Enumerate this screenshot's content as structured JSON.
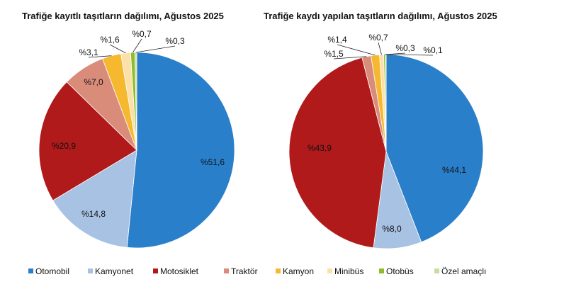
{
  "chart_data": [
    {
      "type": "pie",
      "title": "Trafiğe kayıtlı taşıtların dağılımı, Ağustos 2025",
      "categories": [
        "Otomobil",
        "Kamyonet",
        "Motosiklet",
        "Traktör",
        "Kamyon",
        "Minibüs",
        "Otobüs",
        "Özel amaçlı"
      ],
      "values": [
        51.6,
        14.8,
        20.9,
        7.0,
        3.1,
        1.6,
        0.7,
        0.3
      ],
      "labels": [
        "%51,6",
        "%14,8",
        "%20,9",
        "%7,0",
        "%3,1",
        "%1,6",
        "%0,7",
        "%0,3"
      ],
      "legend": "bottom"
    },
    {
      "type": "pie",
      "title": "Trafiğe kaydı yapılan taşıtların dağılımı, Ağustos 2025",
      "categories": [
        "Otomobil",
        "Kamyonet",
        "Motosiklet",
        "Traktör",
        "Kamyon",
        "Minibüs",
        "Otobüs",
        "Özel amaçlı"
      ],
      "values": [
        44.1,
        8.0,
        43.9,
        1.5,
        1.4,
        0.7,
        0.3,
        0.1
      ],
      "labels": [
        "%44,1",
        "%8,0",
        "%43,9",
        "%1,5",
        "%1,4",
        "%0,7",
        "%0,3",
        "%0,1"
      ],
      "legend": "bottom"
    }
  ],
  "legend": [
    "Otomobil",
    "Kamyonet",
    "Motosiklet",
    "Traktör",
    "Kamyon",
    "Minibüs",
    "Otobüs",
    "Özel amaçlı"
  ],
  "colors": [
    "#2a7fca",
    "#a8c2e3",
    "#b01a1a",
    "#d98c7a",
    "#f5b82e",
    "#fbe1a8",
    "#8dbd2b",
    "#c8dea0"
  ]
}
